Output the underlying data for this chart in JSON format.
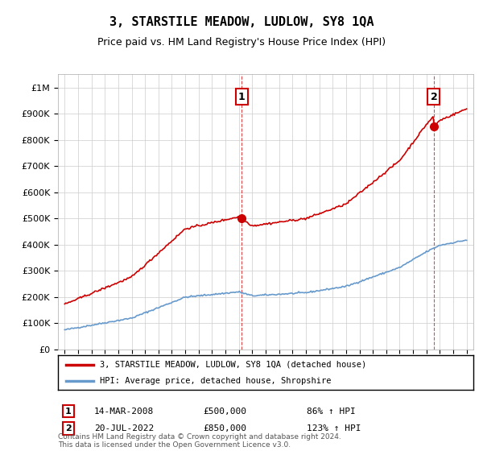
{
  "title": "3, STARSTILE MEADOW, LUDLOW, SY8 1QA",
  "subtitle": "Price paid vs. HM Land Registry's House Price Index (HPI)",
  "legend_line1": "3, STARSTILE MEADOW, LUDLOW, SY8 1QA (detached house)",
  "legend_line2": "HPI: Average price, detached house, Shropshire",
  "sale1_date": "14-MAR-2008",
  "sale1_price": "£500,000",
  "sale1_hpi": "86% ↑ HPI",
  "sale1_year": 2008.2,
  "sale1_value": 500000,
  "sale2_date": "20-JUL-2022",
  "sale2_price": "£850,000",
  "sale2_hpi": "123% ↑ HPI",
  "sale2_year": 2022.55,
  "sale2_value": 850000,
  "footer": "Contains HM Land Registry data © Crown copyright and database right 2024.\nThis data is licensed under the Open Government Licence v3.0.",
  "red_color": "#cc0000",
  "blue_color": "#6699cc",
  "background_color": "#ffffff",
  "grid_color": "#cccccc"
}
